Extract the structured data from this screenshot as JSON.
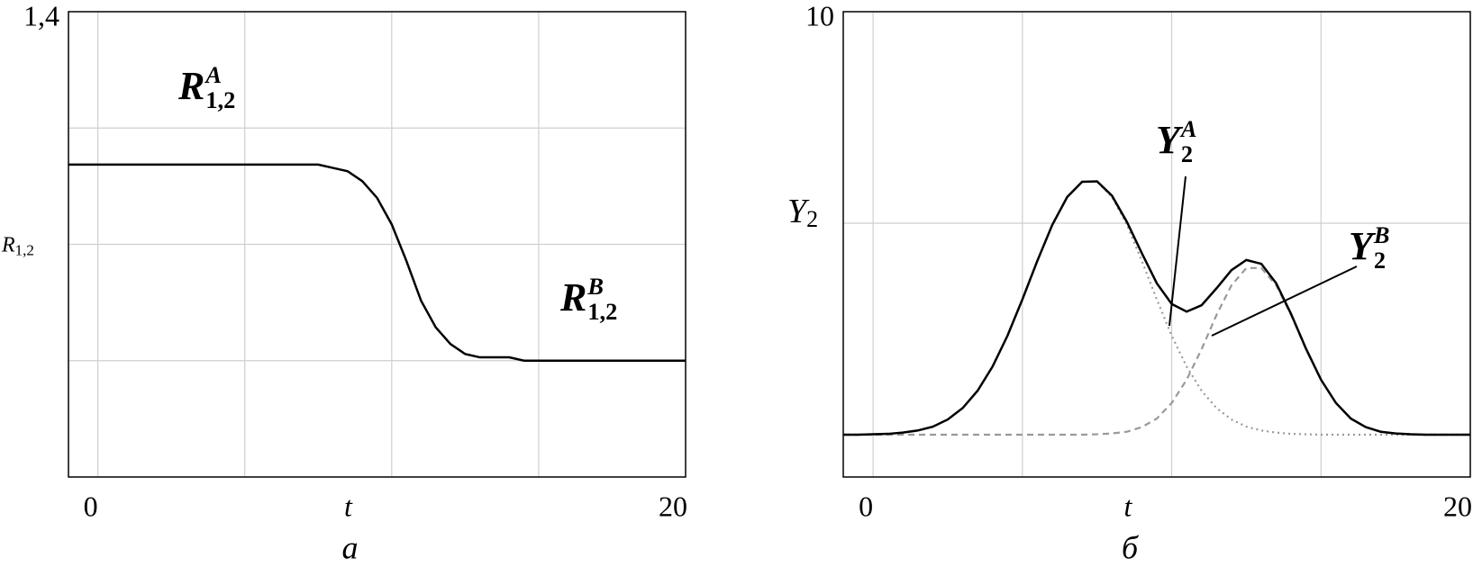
{
  "chart_data": [
    {
      "type": "line",
      "caption": "а",
      "xlabel": "t",
      "ylabel": {
        "text": "R",
        "sub": "1,2"
      },
      "xlim": [
        -1,
        20
      ],
      "ylim": [
        0,
        1.4
      ],
      "xticks": [
        0,
        20
      ],
      "yticks": [
        {
          "value": 1.4,
          "label": "1,4"
        }
      ],
      "grid": true,
      "xgrid": [
        0,
        5,
        10,
        15
      ],
      "ygrid": [
        0.35,
        0.7,
        1.05
      ],
      "x": [
        -1,
        -0.5,
        0,
        0.5,
        1,
        1.5,
        2,
        2.5,
        3,
        3.5,
        4,
        4.5,
        5,
        5.5,
        6,
        6.5,
        7,
        7.5,
        8,
        8.5,
        9,
        9.5,
        10,
        10.5,
        11,
        11.5,
        12,
        12.5,
        13,
        13.5,
        14,
        14.5,
        15,
        15.5,
        16,
        16.5,
        17,
        17.5,
        18,
        18.5,
        19,
        19.5,
        20
      ],
      "series": [
        {
          "color": "#000000",
          "dash": "solid",
          "values": [
            0.94,
            0.94,
            0.94,
            0.94,
            0.94,
            0.94,
            0.94,
            0.94,
            0.94,
            0.94,
            0.94,
            0.94,
            0.94,
            0.94,
            0.94,
            0.94,
            0.94,
            0.94,
            0.93,
            0.92,
            0.89,
            0.84,
            0.76,
            0.65,
            0.53,
            0.45,
            0.4,
            0.37,
            0.36,
            0.36,
            0.36,
            0.35,
            0.35,
            0.35,
            0.35,
            0.35,
            0.35,
            0.35,
            0.35,
            0.35,
            0.35,
            0.35,
            0.35
          ]
        }
      ],
      "annotations": [
        {
          "text": "R",
          "sup": "A",
          "sub": "1,2"
        },
        {
          "text": "R",
          "sup": "B",
          "sub": "1,2"
        }
      ]
    },
    {
      "type": "line",
      "caption": "б",
      "xlabel": "t",
      "ylabel": {
        "text": "Y",
        "sub": "2"
      },
      "xlim": [
        -1,
        20
      ],
      "ylim": [
        -1,
        10
      ],
      "xticks": [
        0,
        20
      ],
      "yticks": [
        10
      ],
      "grid": true,
      "xgrid": [
        0,
        5,
        10,
        15
      ],
      "ygrid": [
        5
      ],
      "x": [
        -1,
        -0.5,
        0,
        0.5,
        1,
        1.5,
        2,
        2.5,
        3,
        3.5,
        4,
        4.5,
        5,
        5.5,
        6,
        6.5,
        7,
        7.5,
        8,
        8.5,
        9,
        9.5,
        10,
        10.5,
        11,
        11.5,
        12,
        12.5,
        13,
        13.5,
        14,
        14.5,
        15,
        15.5,
        16,
        16.5,
        17,
        17.5,
        18,
        18.5,
        19,
        19.5,
        20
      ],
      "series": [
        {
          "color": "#999999",
          "dash": "dotted",
          "values": [
            0,
            0,
            0.01,
            0.02,
            0.05,
            0.1,
            0.19,
            0.36,
            0.63,
            1.04,
            1.61,
            2.34,
            3.2,
            4.11,
            4.96,
            5.62,
            5.98,
            5.98,
            5.62,
            4.96,
            4.11,
            3.2,
            2.34,
            1.61,
            1.04,
            0.63,
            0.36,
            0.19,
            0.1,
            0.05,
            0.02,
            0.01,
            0,
            0,
            0,
            0,
            0,
            0,
            0,
            0,
            0,
            0,
            0
          ]
        },
        {
          "color": "#999999",
          "dash": "dashed",
          "values": [
            0,
            0,
            0,
            0,
            0,
            0,
            0,
            0,
            0,
            0,
            0,
            0,
            0,
            0,
            0,
            0,
            0,
            0.01,
            0.03,
            0.07,
            0.18,
            0.38,
            0.75,
            1.3,
            2.02,
            2.83,
            3.53,
            3.94,
            3.94,
            3.53,
            2.83,
            2.02,
            1.3,
            0.75,
            0.38,
            0.18,
            0.07,
            0.03,
            0.01,
            0,
            0,
            0,
            0
          ]
        },
        {
          "color": "#000000",
          "dash": "solid",
          "values": [
            0,
            0,
            0.01,
            0.02,
            0.05,
            0.1,
            0.19,
            0.36,
            0.63,
            1.04,
            1.61,
            2.34,
            3.2,
            4.11,
            4.96,
            5.62,
            5.98,
            5.99,
            5.65,
            5.03,
            4.29,
            3.58,
            3.09,
            2.91,
            3.06,
            3.46,
            3.89,
            4.13,
            4.04,
            3.58,
            2.85,
            2.03,
            1.3,
            0.75,
            0.38,
            0.18,
            0.07,
            0.03,
            0.01,
            0,
            0,
            0,
            0
          ]
        }
      ],
      "annotations": [
        {
          "text": "Y",
          "sup": "A",
          "sub": "2"
        },
        {
          "text": "Y",
          "sup": "B",
          "sub": "2"
        }
      ]
    }
  ]
}
